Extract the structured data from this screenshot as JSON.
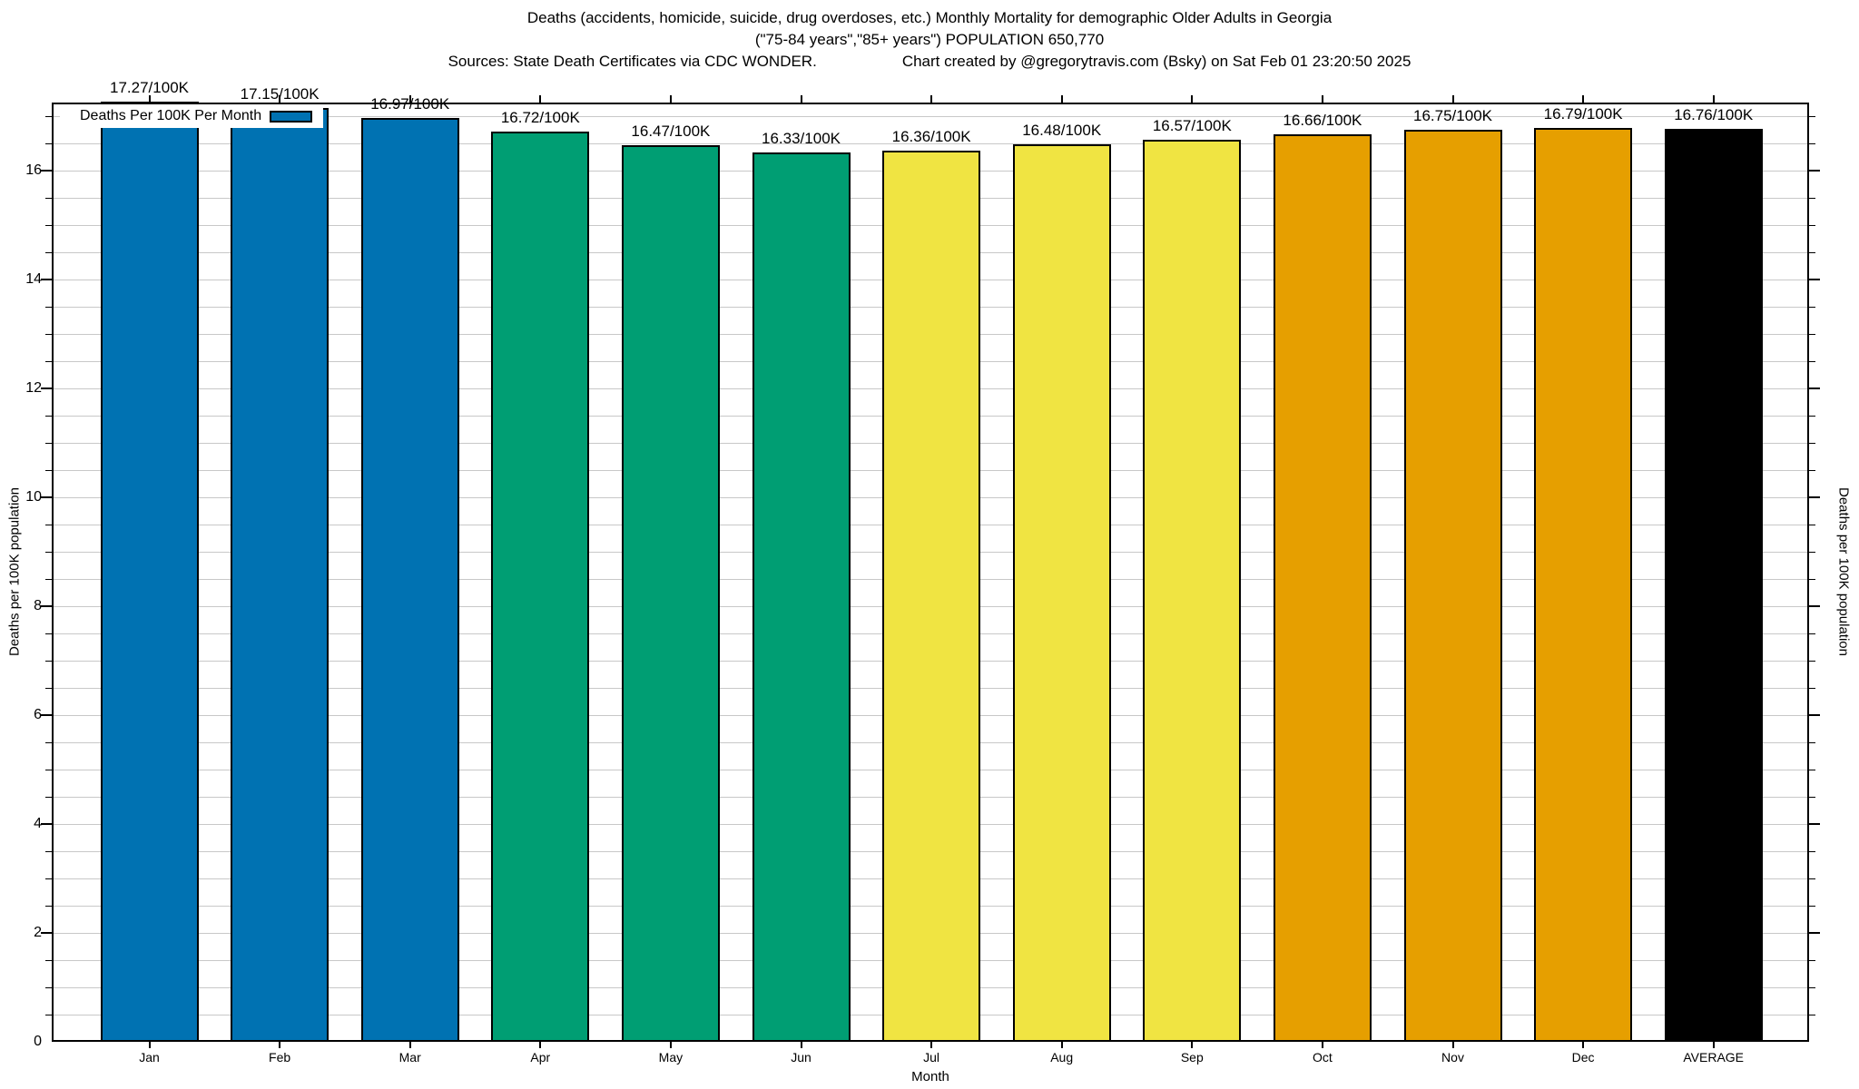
{
  "colors": {
    "blue": "#0072B2",
    "green": "#009E73",
    "yellow": "#F0E442",
    "orange": "#E69F00",
    "black": "#000000",
    "grid": "#c8c8c8",
    "axis": "#000000"
  },
  "chart_data": {
    "type": "bar",
    "title": "Deaths (accidents, homicide, suicide, drug overdoses, etc.) Monthly Mortality for demographic Older Adults in Georgia",
    "subtitle": "(\"75-84 years\",\"85+ years\") POPULATION 650,770",
    "source_note": "Sources: State Death Certificates via CDC WONDER.",
    "credit_note": "Chart created by @gregorytravis.com (Bsky) on Sat Feb 01 23:20:50 2025",
    "categories": [
      "Jan",
      "Feb",
      "Mar",
      "Apr",
      "May",
      "Jun",
      "Jul",
      "Aug",
      "Sep",
      "Oct",
      "Nov",
      "Dec",
      "AVERAGE"
    ],
    "values": [
      17.27,
      17.15,
      16.97,
      16.72,
      16.47,
      16.33,
      16.36,
      16.48,
      16.57,
      16.66,
      16.75,
      16.79,
      16.76
    ],
    "bar_labels": [
      "17.27/100K",
      "17.15/100K",
      "16.97/100K",
      "16.72/100K",
      "16.47/100K",
      "16.33/100K",
      "16.36/100K",
      "16.48/100K",
      "16.57/100K",
      "16.66/100K",
      "16.75/100K",
      "16.79/100K",
      "16.76/100K"
    ],
    "bar_colors": [
      "#0072B2",
      "#0072B2",
      "#0072B2",
      "#009E73",
      "#009E73",
      "#009E73",
      "#F0E442",
      "#F0E442",
      "#F0E442",
      "#E69F00",
      "#E69F00",
      "#E69F00",
      "#000000"
    ],
    "xlabel": "Month",
    "ylabel": "Deaths per 100K population",
    "ylabel_right": "Deaths per 100K population",
    "ylim": [
      0,
      17.25
    ],
    "yticks": [
      0,
      2,
      4,
      6,
      8,
      10,
      12,
      14,
      16
    ],
    "minor_grid_step": 0.5,
    "grid": "horizontal-only",
    "legend": {
      "label": "Deaths Per 100K Per Month",
      "swatch_color": "#0072B2",
      "position": "top-left-inside"
    }
  }
}
